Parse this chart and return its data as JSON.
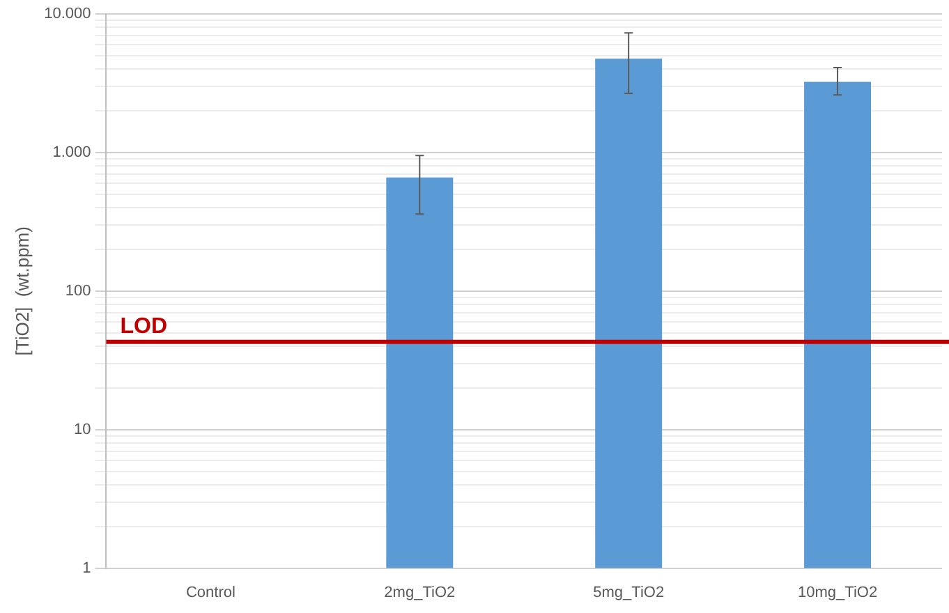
{
  "chart_data": {
    "type": "bar",
    "ylabel": "[TiO2]  (wt.ppm)",
    "categories": [
      "Control",
      "2mg_TiO2",
      "5mg_TiO2",
      "10mg_TiO2"
    ],
    "values": [
      null,
      660,
      4750,
      3230
    ],
    "errors": [
      null,
      [
        360,
        950
      ],
      [
        2670,
        7300
      ],
      [
        2600,
        4100
      ]
    ],
    "color": "#5b9bd5",
    "log": "y",
    "ylim": [
      1,
      10000
    ],
    "yticks": [
      1,
      {
        "value": 2,
        "label": null
      },
      {
        "value": 3,
        "label": null
      },
      {
        "value": 4,
        "label": null
      },
      {
        "value": 5,
        "label": null
      },
      {
        "value": 6,
        "label": null
      },
      {
        "value": 7,
        "label": null
      },
      {
        "value": 8,
        "label": null
      },
      {
        "value": 9,
        "label": null
      },
      10,
      {
        "value": 20,
        "label": null
      },
      {
        "value": 30,
        "label": null
      },
      {
        "value": 40,
        "label": null
      },
      {
        "value": 50,
        "label": null
      },
      {
        "value": 60,
        "label": null
      },
      {
        "value": 70,
        "label": null
      },
      {
        "value": 80,
        "label": null
      },
      {
        "value": 90,
        "label": null
      },
      100,
      {
        "value": 200,
        "label": null
      },
      {
        "value": 300,
        "label": null
      },
      {
        "value": 400,
        "label": null
      },
      {
        "value": 500,
        "label": null
      },
      {
        "value": 600,
        "label": null
      },
      {
        "value": 700,
        "label": null
      },
      {
        "value": 800,
        "label": null
      },
      {
        "value": 900,
        "label": null
      },
      {
        "value": 1000,
        "label": "1.000"
      },
      {
        "value": 2000,
        "label": null
      },
      {
        "value": 3000,
        "label": null
      },
      {
        "value": 4000,
        "label": null
      },
      {
        "value": 5000,
        "label": null
      },
      {
        "value": 6000,
        "label": null
      },
      {
        "value": 7000,
        "label": null
      },
      {
        "value": 8000,
        "label": null
      },
      {
        "value": 9000,
        "label": null
      },
      {
        "value": 10000,
        "label": "10.000"
      }
    ],
    "grid": "y",
    "ref_lines": [
      {
        "axis": "y",
        "value": 43,
        "label": "LOD",
        "color": "#c00000"
      }
    ]
  }
}
